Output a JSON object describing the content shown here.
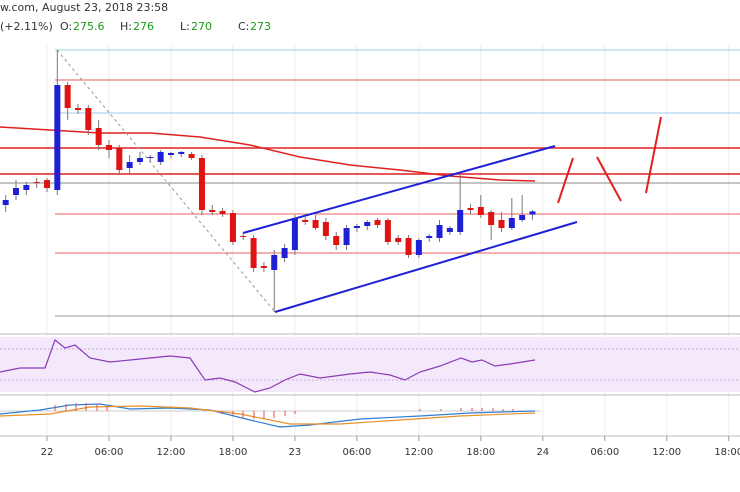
{
  "header": {
    "title": "w.com, August 23, 2018 23:58",
    "change": "(+2.11%)",
    "ohlc_labels": [
      "O:",
      "H:",
      "L:",
      "C:"
    ]
  },
  "chart_data": {
    "type": "candlestick",
    "x": [
      -4,
      -3,
      -2,
      -1,
      0,
      1,
      2,
      3,
      4,
      5,
      6,
      7,
      8,
      9,
      10,
      11,
      12,
      13,
      14,
      15,
      16,
      17,
      18,
      19,
      20,
      21,
      22,
      23,
      24,
      25,
      26,
      27,
      28,
      29,
      30,
      31,
      32,
      33,
      34,
      35,
      36,
      37,
      38,
      39,
      40,
      41,
      42,
      43,
      44,
      45,
      46,
      47
    ],
    "open": [
      277,
      279,
      280,
      281.6,
      282,
      280,
      301,
      296.4,
      296.4,
      292.4,
      289,
      288.4,
      284.4,
      285.6,
      286.4,
      285.6,
      287,
      287.2,
      287.2,
      286.4,
      276,
      275.8,
      275.4,
      270.8,
      270.4,
      264.8,
      264,
      266.4,
      268,
      274,
      274,
      273.6,
      270.8,
      269,
      272.4,
      272.8,
      274,
      274,
      270.4,
      270.4,
      267,
      270.4,
      270.4,
      271.6,
      271.6,
      276.4,
      276.6,
      275.6,
      274,
      272.4,
      274,
      275.09
    ],
    "high": [
      279,
      282,
      281.6,
      282.4,
      282.4,
      308,
      301.6,
      297.2,
      297,
      294,
      290,
      289,
      287,
      287.6,
      287,
      288,
      287.6,
      287.8,
      287.6,
      287,
      277,
      276.4,
      276,
      271.4,
      271,
      265.6,
      268,
      269.2,
      275,
      274.8,
      275,
      274.4,
      271.6,
      273,
      273.2,
      274,
      274.4,
      274.4,
      271,
      271,
      270.4,
      271.2,
      274,
      272.8,
      283,
      277.2,
      279,
      276,
      275.6,
      278.4,
      279,
      275.99
    ],
    "low": [
      275.6,
      278,
      279,
      280.4,
      279.6,
      279,
      294,
      295.2,
      291,
      288,
      286.4,
      283,
      283,
      285,
      285.6,
      285,
      286.4,
      286.6,
      286,
      275,
      275,
      274.6,
      269,
      270,
      263.6,
      263.6,
      255.6,
      265.6,
      267,
      273,
      272,
      270,
      268,
      268,
      271.6,
      272,
      272.4,
      269,
      269,
      266.4,
      266.4,
      269.6,
      269.6,
      271,
      271,
      275.2,
      274.4,
      270,
      271.6,
      272,
      273.6,
      274.04
    ],
    "close": [
      278,
      280.4,
      281,
      281.4,
      280.4,
      301,
      296.4,
      296,
      292,
      289,
      288,
      284,
      285.6,
      286.4,
      286.6,
      287.6,
      287.4,
      287.6,
      286.4,
      276,
      275.6,
      275.2,
      269.6,
      270.6,
      264.4,
      264.4,
      267,
      268.4,
      274.4,
      273.6,
      272.4,
      270.8,
      269,
      272.4,
      272.8,
      273.6,
      273,
      269.6,
      269.6,
      267,
      270,
      270.8,
      273,
      272.4,
      276,
      276,
      275,
      273,
      272.4,
      274.4,
      275,
      275.72
    ],
    "up_color": "#1f1fd6",
    "down_color": "#e01212",
    "xlim": [
      -4.55,
      67.09
    ],
    "ylim": [
      252,
      309
    ],
    "xticks": [
      {
        "value": 0,
        "label": "22"
      },
      {
        "value": 6,
        "label": "06:00"
      },
      {
        "value": 12,
        "label": "12:00"
      },
      {
        "value": 18,
        "label": "18:00"
      },
      {
        "value": 24,
        "label": "23"
      },
      {
        "value": 30,
        "label": "06:00"
      },
      {
        "value": 36,
        "label": "12:00"
      },
      {
        "value": 42,
        "label": "18:00"
      },
      {
        "value": 48,
        "label": "24"
      },
      {
        "value": 54,
        "label": "06:00"
      },
      {
        "value": 60,
        "label": "12:00"
      },
      {
        "value": 66,
        "label": "18:00"
      }
    ],
    "grid": true
  }
}
